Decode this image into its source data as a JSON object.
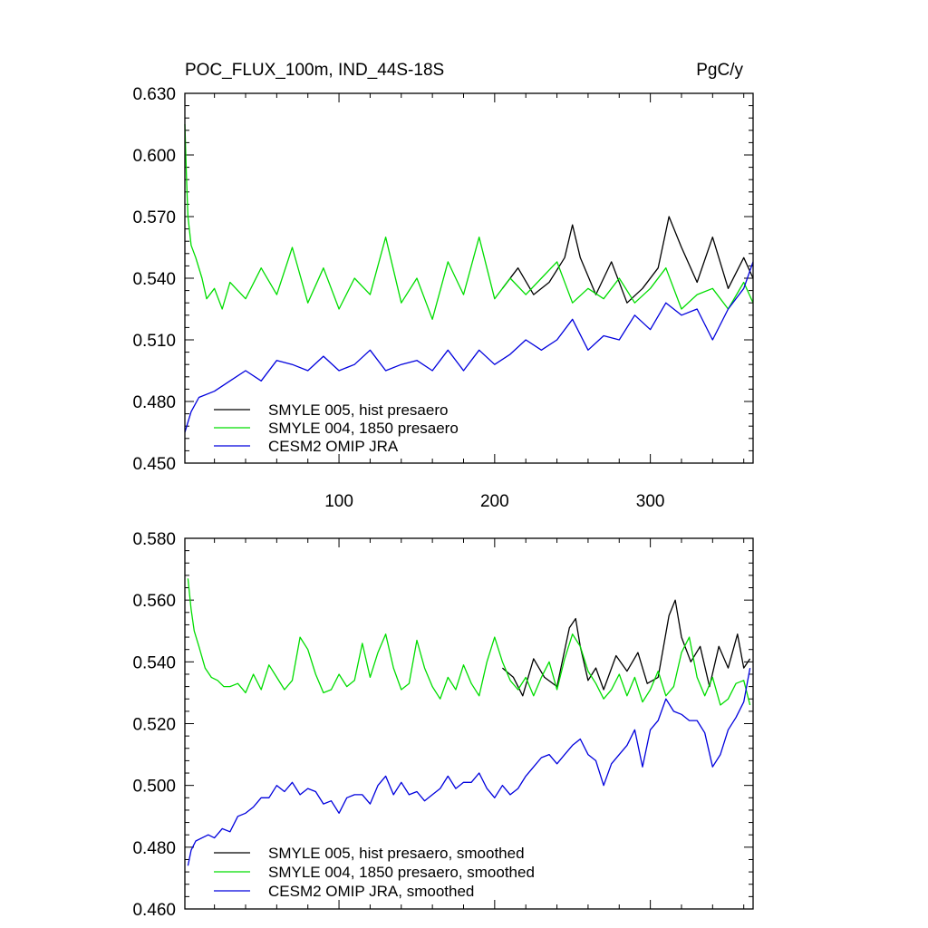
{
  "chart_data": [
    {
      "type": "line",
      "title": "POC_FLUX_100m, IND_44S-18S",
      "units": "PgC/y",
      "xlim": [
        1,
        366
      ],
      "ylim": [
        0.45,
        0.63
      ],
      "xticks": [
        100,
        200,
        300
      ],
      "xtick_labels": [
        "100",
        "200",
        "300"
      ],
      "yticks": [
        0.45,
        0.48,
        0.51,
        0.54,
        0.57,
        0.6,
        0.63
      ],
      "ytick_labels": [
        "0.450",
        "0.480",
        "0.510",
        "0.540",
        "0.570",
        "0.600",
        "0.630"
      ],
      "legend": [
        "SMYLE 005, hist presaero",
        "SMYLE 004, 1850 presaero",
        "CESM2 OMIP JRA"
      ],
      "series": [
        {
          "name": "SMYLE 005, hist presaero",
          "color": "#000000",
          "start_day": 205,
          "x": [
            205,
            215,
            225,
            235,
            245,
            250,
            255,
            265,
            275,
            285,
            295,
            305,
            312,
            320,
            330,
            340,
            350,
            360,
            366
          ],
          "y": [
            0.535,
            0.545,
            0.532,
            0.538,
            0.55,
            0.566,
            0.55,
            0.532,
            0.548,
            0.528,
            0.535,
            0.545,
            0.57,
            0.555,
            0.538,
            0.56,
            0.535,
            0.55,
            0.54
          ]
        },
        {
          "name": "SMYLE 004, 1850 presaero",
          "color": "#00dd00",
          "x": [
            1,
            2,
            3,
            5,
            8,
            12,
            15,
            20,
            25,
            30,
            40,
            50,
            60,
            70,
            80,
            90,
            100,
            110,
            120,
            130,
            140,
            150,
            160,
            170,
            180,
            190,
            200,
            210,
            220,
            230,
            240,
            250,
            260,
            270,
            280,
            290,
            300,
            310,
            320,
            330,
            340,
            350,
            360,
            366
          ],
          "y": [
            0.615,
            0.59,
            0.57,
            0.556,
            0.55,
            0.54,
            0.53,
            0.535,
            0.525,
            0.538,
            0.53,
            0.545,
            0.532,
            0.555,
            0.528,
            0.545,
            0.525,
            0.54,
            0.532,
            0.56,
            0.528,
            0.54,
            0.52,
            0.548,
            0.532,
            0.56,
            0.53,
            0.54,
            0.532,
            0.54,
            0.548,
            0.528,
            0.535,
            0.53,
            0.54,
            0.528,
            0.535,
            0.545,
            0.525,
            0.532,
            0.535,
            0.525,
            0.538,
            0.528
          ]
        },
        {
          "name": "CESM2 OMIP JRA",
          "color": "#0000dd",
          "x": [
            1,
            5,
            10,
            20,
            30,
            40,
            50,
            60,
            70,
            80,
            90,
            100,
            110,
            120,
            130,
            140,
            150,
            160,
            170,
            180,
            190,
            200,
            210,
            220,
            230,
            240,
            250,
            260,
            270,
            280,
            290,
            300,
            310,
            320,
            330,
            340,
            350,
            360,
            366
          ],
          "y": [
            0.465,
            0.475,
            0.482,
            0.485,
            0.49,
            0.495,
            0.49,
            0.5,
            0.498,
            0.495,
            0.502,
            0.495,
            0.498,
            0.505,
            0.495,
            0.498,
            0.5,
            0.495,
            0.505,
            0.495,
            0.505,
            0.498,
            0.503,
            0.51,
            0.505,
            0.51,
            0.52,
            0.505,
            0.512,
            0.51,
            0.522,
            0.515,
            0.528,
            0.522,
            0.525,
            0.51,
            0.525,
            0.535,
            0.548
          ]
        }
      ]
    },
    {
      "type": "line",
      "xlim": [
        1,
        366
      ],
      "ylim": [
        0.46,
        0.58
      ],
      "xticks": [
        100,
        200,
        300
      ],
      "yticks": [
        0.46,
        0.48,
        0.5,
        0.52,
        0.54,
        0.56,
        0.58
      ],
      "ytick_labels": [
        "0.460",
        "0.480",
        "0.500",
        "0.520",
        "0.540",
        "0.560",
        "0.580"
      ],
      "legend": [
        "SMYLE 005, hist presaero, smoothed",
        "SMYLE 004, 1850 presaero, smoothed",
        "CESM2 OMIP JRA, smoothed"
      ],
      "series": [
        {
          "name": "SMYLE 005, hist presaero, smoothed",
          "color": "#000000",
          "x": [
            205,
            212,
            218,
            225,
            232,
            240,
            248,
            252,
            255,
            260,
            265,
            270,
            278,
            285,
            292,
            298,
            305,
            312,
            316,
            320,
            326,
            332,
            338,
            344,
            350,
            356,
            360,
            364
          ],
          "y": [
            0.538,
            0.535,
            0.529,
            0.541,
            0.535,
            0.532,
            0.551,
            0.554,
            0.545,
            0.534,
            0.538,
            0.531,
            0.542,
            0.537,
            0.543,
            0.533,
            0.535,
            0.555,
            0.56,
            0.548,
            0.54,
            0.545,
            0.532,
            0.545,
            0.538,
            0.549,
            0.538,
            0.541
          ]
        },
        {
          "name": "SMYLE 004, 1850 presaero, smoothed",
          "color": "#00dd00",
          "x": [
            3,
            5,
            7,
            10,
            14,
            18,
            22,
            26,
            30,
            35,
            40,
            45,
            50,
            55,
            60,
            65,
            70,
            75,
            80,
            85,
            90,
            95,
            100,
            105,
            110,
            115,
            120,
            125,
            130,
            135,
            140,
            145,
            150,
            155,
            160,
            165,
            170,
            175,
            180,
            185,
            190,
            195,
            200,
            205,
            210,
            215,
            220,
            225,
            230,
            235,
            240,
            245,
            250,
            255,
            260,
            265,
            270,
            275,
            280,
            285,
            290,
            295,
            300,
            305,
            310,
            315,
            320,
            325,
            330,
            335,
            340,
            345,
            350,
            355,
            360,
            364
          ],
          "y": [
            0.567,
            0.557,
            0.55,
            0.545,
            0.538,
            0.535,
            0.534,
            0.532,
            0.532,
            0.533,
            0.53,
            0.536,
            0.531,
            0.539,
            0.535,
            0.531,
            0.534,
            0.548,
            0.544,
            0.536,
            0.53,
            0.531,
            0.536,
            0.532,
            0.534,
            0.546,
            0.535,
            0.543,
            0.549,
            0.538,
            0.531,
            0.533,
            0.547,
            0.538,
            0.532,
            0.528,
            0.535,
            0.531,
            0.539,
            0.533,
            0.529,
            0.54,
            0.548,
            0.54,
            0.534,
            0.531,
            0.535,
            0.529,
            0.535,
            0.54,
            0.531,
            0.541,
            0.549,
            0.545,
            0.537,
            0.533,
            0.528,
            0.531,
            0.536,
            0.529,
            0.535,
            0.527,
            0.531,
            0.537,
            0.529,
            0.532,
            0.543,
            0.548,
            0.535,
            0.529,
            0.535,
            0.526,
            0.528,
            0.533,
            0.534,
            0.526
          ]
        },
        {
          "name": "CESM2 OMIP JRA, smoothed",
          "color": "#0000dd",
          "x": [
            3,
            5,
            8,
            12,
            16,
            20,
            25,
            30,
            35,
            40,
            45,
            50,
            55,
            60,
            65,
            70,
            75,
            80,
            85,
            90,
            95,
            100,
            105,
            110,
            115,
            120,
            125,
            130,
            135,
            140,
            145,
            150,
            155,
            160,
            165,
            170,
            175,
            180,
            185,
            190,
            195,
            200,
            205,
            210,
            215,
            220,
            225,
            230,
            235,
            240,
            245,
            250,
            255,
            260,
            265,
            270,
            275,
            280,
            285,
            290,
            295,
            300,
            305,
            310,
            315,
            320,
            325,
            330,
            335,
            340,
            345,
            350,
            355,
            360,
            364
          ],
          "y": [
            0.474,
            0.479,
            0.482,
            0.483,
            0.484,
            0.483,
            0.486,
            0.485,
            0.49,
            0.491,
            0.493,
            0.496,
            0.496,
            0.5,
            0.498,
            0.501,
            0.497,
            0.499,
            0.498,
            0.494,
            0.495,
            0.491,
            0.496,
            0.497,
            0.497,
            0.494,
            0.5,
            0.503,
            0.497,
            0.501,
            0.497,
            0.498,
            0.495,
            0.497,
            0.499,
            0.503,
            0.499,
            0.501,
            0.501,
            0.504,
            0.499,
            0.496,
            0.5,
            0.497,
            0.499,
            0.503,
            0.506,
            0.509,
            0.51,
            0.507,
            0.51,
            0.513,
            0.515,
            0.51,
            0.508,
            0.5,
            0.507,
            0.51,
            0.513,
            0.518,
            0.506,
            0.518,
            0.521,
            0.528,
            0.524,
            0.523,
            0.521,
            0.521,
            0.517,
            0.506,
            0.51,
            0.518,
            0.522,
            0.527,
            0.538
          ]
        }
      ]
    }
  ]
}
